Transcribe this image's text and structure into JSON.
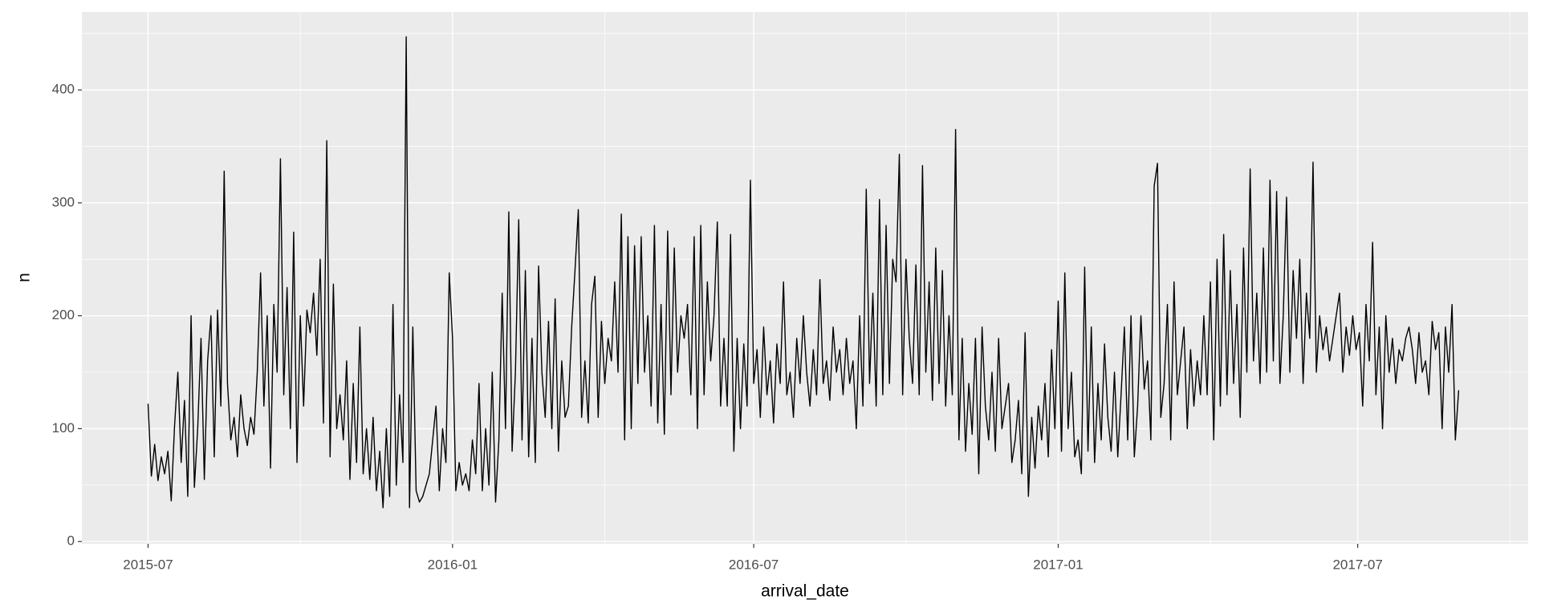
{
  "chart_data": {
    "type": "line",
    "x_label": "arrival_date",
    "y_label": "n",
    "xlim": [
      "2015-05-22",
      "2017-10-12"
    ],
    "xticks": [
      {
        "value": "2015-07-01",
        "label": "2015-07"
      },
      {
        "value": "2016-01-01",
        "label": "2016-01"
      },
      {
        "value": "2016-07-01",
        "label": "2016-07"
      },
      {
        "value": "2017-01-01",
        "label": "2017-01"
      },
      {
        "value": "2017-07-01",
        "label": "2017-07"
      }
    ],
    "ylim": [
      -2,
      469
    ],
    "yticks": [
      0,
      100,
      200,
      300,
      400
    ],
    "grid": true,
    "series": [
      {
        "name": "n",
        "color": "#000000",
        "x": [
          "2015-07-01",
          "2015-07-03",
          "2015-07-05",
          "2015-07-07",
          "2015-07-09",
          "2015-07-11",
          "2015-07-13",
          "2015-07-15",
          "2015-07-17",
          "2015-07-19",
          "2015-07-21",
          "2015-07-23",
          "2015-07-25",
          "2015-07-27",
          "2015-07-29",
          "2015-07-31",
          "2015-08-02",
          "2015-08-04",
          "2015-08-06",
          "2015-08-08",
          "2015-08-10",
          "2015-08-12",
          "2015-08-14",
          "2015-08-16",
          "2015-08-18",
          "2015-08-20",
          "2015-08-22",
          "2015-08-24",
          "2015-08-26",
          "2015-08-28",
          "2015-08-30",
          "2015-09-01",
          "2015-09-03",
          "2015-09-05",
          "2015-09-07",
          "2015-09-09",
          "2015-09-11",
          "2015-09-13",
          "2015-09-15",
          "2015-09-17",
          "2015-09-19",
          "2015-09-21",
          "2015-09-23",
          "2015-09-25",
          "2015-09-27",
          "2015-09-29",
          "2015-10-01",
          "2015-10-03",
          "2015-10-05",
          "2015-10-07",
          "2015-10-09",
          "2015-10-11",
          "2015-10-13",
          "2015-10-15",
          "2015-10-17",
          "2015-10-19",
          "2015-10-21",
          "2015-10-23",
          "2015-10-25",
          "2015-10-27",
          "2015-10-29",
          "2015-10-31",
          "2015-11-02",
          "2015-11-04",
          "2015-11-06",
          "2015-11-08",
          "2015-11-10",
          "2015-11-12",
          "2015-11-14",
          "2015-11-16",
          "2015-11-18",
          "2015-11-20",
          "2015-11-22",
          "2015-11-24",
          "2015-11-26",
          "2015-11-28",
          "2015-11-30",
          "2015-12-02",
          "2015-12-04",
          "2015-12-06",
          "2015-12-08",
          "2015-12-10",
          "2015-12-12",
          "2015-12-14",
          "2015-12-16",
          "2015-12-18",
          "2015-12-20",
          "2015-12-22",
          "2015-12-24",
          "2015-12-26",
          "2015-12-28",
          "2015-12-30",
          "2016-01-01",
          "2016-01-03",
          "2016-01-05",
          "2016-01-07",
          "2016-01-09",
          "2016-01-11",
          "2016-01-13",
          "2016-01-15",
          "2016-01-17",
          "2016-01-19",
          "2016-01-21",
          "2016-01-23",
          "2016-01-25",
          "2016-01-27",
          "2016-01-29",
          "2016-01-31",
          "2016-02-02",
          "2016-02-04",
          "2016-02-06",
          "2016-02-08",
          "2016-02-10",
          "2016-02-12",
          "2016-02-14",
          "2016-02-16",
          "2016-02-18",
          "2016-02-20",
          "2016-02-22",
          "2016-02-24",
          "2016-02-26",
          "2016-02-28",
          "2016-03-01",
          "2016-03-03",
          "2016-03-05",
          "2016-03-07",
          "2016-03-09",
          "2016-03-11",
          "2016-03-13",
          "2016-03-15",
          "2016-03-17",
          "2016-03-19",
          "2016-03-21",
          "2016-03-23",
          "2016-03-25",
          "2016-03-27",
          "2016-03-29",
          "2016-03-31",
          "2016-04-02",
          "2016-04-04",
          "2016-04-06",
          "2016-04-08",
          "2016-04-10",
          "2016-04-12",
          "2016-04-14",
          "2016-04-16",
          "2016-04-18",
          "2016-04-20",
          "2016-04-22",
          "2016-04-24",
          "2016-04-26",
          "2016-04-28",
          "2016-04-30",
          "2016-05-02",
          "2016-05-04",
          "2016-05-06",
          "2016-05-08",
          "2016-05-10",
          "2016-05-12",
          "2016-05-14",
          "2016-05-16",
          "2016-05-18",
          "2016-05-20",
          "2016-05-22",
          "2016-05-24",
          "2016-05-26",
          "2016-05-28",
          "2016-05-30",
          "2016-06-01",
          "2016-06-03",
          "2016-06-05",
          "2016-06-07",
          "2016-06-09",
          "2016-06-11",
          "2016-06-13",
          "2016-06-15",
          "2016-06-17",
          "2016-06-19",
          "2016-06-21",
          "2016-06-23",
          "2016-06-25",
          "2016-06-27",
          "2016-06-29",
          "2016-07-01",
          "2016-07-03",
          "2016-07-05",
          "2016-07-07",
          "2016-07-09",
          "2016-07-11",
          "2016-07-13",
          "2016-07-15",
          "2016-07-17",
          "2016-07-19",
          "2016-07-21",
          "2016-07-23",
          "2016-07-25",
          "2016-07-27",
          "2016-07-29",
          "2016-07-31",
          "2016-08-02",
          "2016-08-04",
          "2016-08-06",
          "2016-08-08",
          "2016-08-10",
          "2016-08-12",
          "2016-08-14",
          "2016-08-16",
          "2016-08-18",
          "2016-08-20",
          "2016-08-22",
          "2016-08-24",
          "2016-08-26",
          "2016-08-28",
          "2016-08-30",
          "2016-09-01",
          "2016-09-03",
          "2016-09-05",
          "2016-09-07",
          "2016-09-09",
          "2016-09-11",
          "2016-09-13",
          "2016-09-15",
          "2016-09-17",
          "2016-09-19",
          "2016-09-21",
          "2016-09-23",
          "2016-09-25",
          "2016-09-27",
          "2016-09-29",
          "2016-10-01",
          "2016-10-03",
          "2016-10-05",
          "2016-10-07",
          "2016-10-09",
          "2016-10-11",
          "2016-10-13",
          "2016-10-15",
          "2016-10-17",
          "2016-10-19",
          "2016-10-21",
          "2016-10-23",
          "2016-10-25",
          "2016-10-27",
          "2016-10-29",
          "2016-10-31",
          "2016-11-02",
          "2016-11-04",
          "2016-11-06",
          "2016-11-08",
          "2016-11-10",
          "2016-11-12",
          "2016-11-14",
          "2016-11-16",
          "2016-11-18",
          "2016-11-20",
          "2016-11-22",
          "2016-11-24",
          "2016-11-26",
          "2016-11-28",
          "2016-11-30",
          "2016-12-02",
          "2016-12-04",
          "2016-12-06",
          "2016-12-08",
          "2016-12-10",
          "2016-12-12",
          "2016-12-14",
          "2016-12-16",
          "2016-12-18",
          "2016-12-20",
          "2016-12-22",
          "2016-12-24",
          "2016-12-26",
          "2016-12-28",
          "2016-12-30",
          "2017-01-01",
          "2017-01-03",
          "2017-01-05",
          "2017-01-07",
          "2017-01-09",
          "2017-01-11",
          "2017-01-13",
          "2017-01-15",
          "2017-01-17",
          "2017-01-19",
          "2017-01-21",
          "2017-01-23",
          "2017-01-25",
          "2017-01-27",
          "2017-01-29",
          "2017-01-31",
          "2017-02-02",
          "2017-02-04",
          "2017-02-06",
          "2017-02-08",
          "2017-02-10",
          "2017-02-12",
          "2017-02-14",
          "2017-02-16",
          "2017-02-18",
          "2017-02-20",
          "2017-02-22",
          "2017-02-24",
          "2017-02-26",
          "2017-02-28",
          "2017-03-02",
          "2017-03-04",
          "2017-03-06",
          "2017-03-08",
          "2017-03-10",
          "2017-03-12",
          "2017-03-14",
          "2017-03-16",
          "2017-03-18",
          "2017-03-20",
          "2017-03-22",
          "2017-03-24",
          "2017-03-26",
          "2017-03-28",
          "2017-03-30",
          "2017-04-01",
          "2017-04-03",
          "2017-04-05",
          "2017-04-07",
          "2017-04-09",
          "2017-04-11",
          "2017-04-13",
          "2017-04-15",
          "2017-04-17",
          "2017-04-19",
          "2017-04-21",
          "2017-04-23",
          "2017-04-25",
          "2017-04-27",
          "2017-04-29",
          "2017-05-01",
          "2017-05-03",
          "2017-05-05",
          "2017-05-07",
          "2017-05-09",
          "2017-05-11",
          "2017-05-13",
          "2017-05-15",
          "2017-05-17",
          "2017-05-19",
          "2017-05-21",
          "2017-05-23",
          "2017-05-25",
          "2017-05-27",
          "2017-05-29",
          "2017-05-31",
          "2017-06-02",
          "2017-06-04",
          "2017-06-06",
          "2017-06-08",
          "2017-06-10",
          "2017-06-12",
          "2017-06-14",
          "2017-06-16",
          "2017-06-18",
          "2017-06-20",
          "2017-06-22",
          "2017-06-24",
          "2017-06-26",
          "2017-06-28",
          "2017-06-30",
          "2017-07-02",
          "2017-07-04",
          "2017-07-06",
          "2017-07-08",
          "2017-07-10",
          "2017-07-12",
          "2017-07-14",
          "2017-07-16",
          "2017-07-18",
          "2017-07-20",
          "2017-07-22",
          "2017-07-24",
          "2017-07-26",
          "2017-07-28",
          "2017-07-30",
          "2017-08-01",
          "2017-08-03",
          "2017-08-05",
          "2017-08-07",
          "2017-08-09",
          "2017-08-11",
          "2017-08-13",
          "2017-08-15",
          "2017-08-17",
          "2017-08-19",
          "2017-08-21",
          "2017-08-23",
          "2017-08-25",
          "2017-08-27",
          "2017-08-29",
          "2017-08-31"
        ],
        "values": [
          122,
          58,
          86,
          54,
          75,
          60,
          80,
          36,
          102,
          150,
          70,
          125,
          40,
          200,
          48,
          100,
          180,
          55,
          160,
          200,
          75,
          205,
          120,
          328,
          140,
          90,
          110,
          75,
          130,
          100,
          85,
          110,
          95,
          150,
          238,
          120,
          200,
          65,
          210,
          150,
          339,
          130,
          225,
          100,
          274,
          70,
          200,
          120,
          205,
          185,
          220,
          165,
          250,
          105,
          355,
          75,
          228,
          100,
          130,
          90,
          160,
          55,
          140,
          70,
          190,
          60,
          100,
          55,
          110,
          45,
          80,
          30,
          100,
          40,
          210,
          50,
          130,
          70,
          447,
          30,
          190,
          45,
          35,
          40,
          50,
          60,
          90,
          120,
          45,
          100,
          70,
          238,
          180,
          45,
          70,
          50,
          60,
          45,
          90,
          60,
          140,
          45,
          100,
          50,
          150,
          35,
          90,
          220,
          100,
          292,
          80,
          150,
          285,
          90,
          240,
          75,
          180,
          70,
          244,
          150,
          110,
          195,
          100,
          215,
          80,
          160,
          110,
          120,
          190,
          240,
          294,
          110,
          160,
          105,
          210,
          235,
          110,
          195,
          140,
          180,
          160,
          230,
          150,
          290,
          90,
          270,
          100,
          262,
          140,
          270,
          150,
          200,
          120,
          280,
          105,
          210,
          95,
          275,
          130,
          260,
          150,
          200,
          180,
          210,
          130,
          270,
          100,
          280,
          130,
          230,
          160,
          200,
          283,
          120,
          180,
          120,
          272,
          80,
          180,
          100,
          175,
          120,
          320,
          140,
          170,
          110,
          190,
          130,
          160,
          105,
          175,
          140,
          230,
          130,
          150,
          110,
          180,
          140,
          200,
          150,
          120,
          170,
          130,
          232,
          140,
          160,
          125,
          190,
          150,
          170,
          130,
          180,
          140,
          160,
          100,
          200,
          120,
          312,
          140,
          220,
          120,
          303,
          130,
          280,
          140,
          250,
          230,
          343,
          130,
          250,
          180,
          140,
          245,
          130,
          333,
          150,
          230,
          125,
          260,
          140,
          240,
          120,
          200,
          130,
          365,
          90,
          180,
          80,
          140,
          95,
          180,
          60,
          190,
          120,
          90,
          150,
          80,
          180,
          100,
          120,
          140,
          70,
          90,
          125,
          60,
          185,
          40,
          110,
          65,
          120,
          90,
          140,
          75,
          170,
          100,
          213,
          80,
          238,
          100,
          150,
          75,
          90,
          60,
          243,
          80,
          190,
          70,
          140,
          90,
          175,
          110,
          80,
          150,
          75,
          130,
          190,
          90,
          200,
          75,
          120,
          200,
          135,
          160,
          90,
          315,
          335,
          110,
          140,
          210,
          90,
          230,
          130,
          160,
          190,
          100,
          170,
          120,
          160,
          130,
          200,
          130,
          230,
          90,
          250,
          120,
          272,
          130,
          240,
          140,
          210,
          110,
          260,
          150,
          330,
          160,
          220,
          140,
          260,
          150,
          320,
          160,
          310,
          140,
          200,
          305,
          150,
          240,
          180,
          250,
          140,
          220,
          180,
          336,
          150,
          200,
          170,
          190,
          160,
          180,
          200,
          220,
          150,
          190,
          165,
          200,
          170,
          185,
          120,
          210,
          160,
          265,
          130,
          190,
          100,
          200,
          150,
          180,
          140,
          170,
          160,
          180,
          190,
          170,
          140,
          185,
          150,
          160,
          130,
          195,
          170,
          185,
          100,
          190,
          150,
          210,
          90,
          134
        ]
      }
    ]
  }
}
